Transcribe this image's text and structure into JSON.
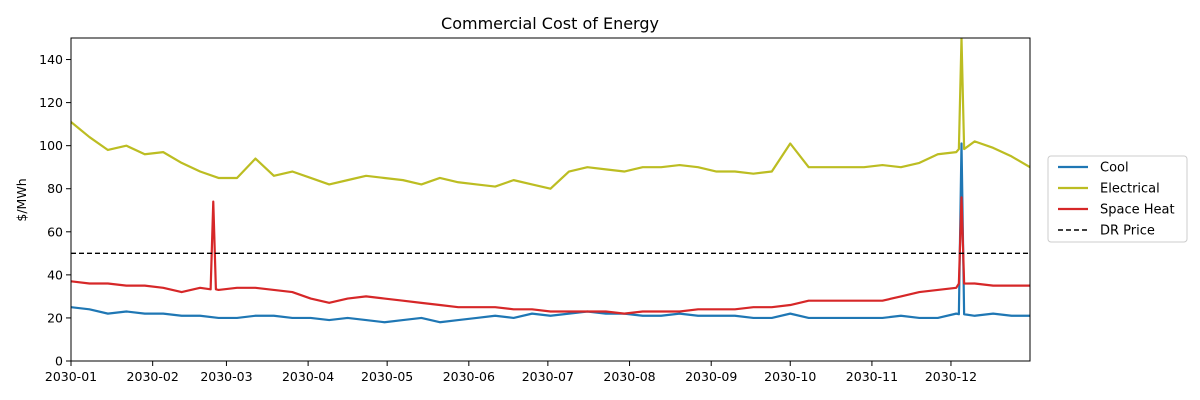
{
  "chart_data": {
    "type": "line",
    "title": "Commercial Cost of Energy",
    "xlabel": "",
    "ylabel": "$/MWh",
    "xlim": [
      "2030-01-01",
      "2030-12-31"
    ],
    "ylim": [
      0,
      150
    ],
    "x_ticks": [
      "2030-01",
      "2030-02",
      "2030-03",
      "2030-04",
      "2030-05",
      "2030-06",
      "2030-07",
      "2030-08",
      "2030-09",
      "2030-10",
      "2030-11",
      "2030-12"
    ],
    "y_ticks": [
      0,
      20,
      40,
      60,
      80,
      100,
      120,
      140
    ],
    "grid": false,
    "legend_position": "outside-right",
    "x": [
      "2030-01-01",
      "2030-01-08",
      "2030-01-15",
      "2030-01-22",
      "2030-01-29",
      "2030-02-05",
      "2030-02-12",
      "2030-02-19",
      "2030-02-26",
      "2030-03-05",
      "2030-03-12",
      "2030-03-19",
      "2030-03-26",
      "2030-04-02",
      "2030-04-09",
      "2030-04-16",
      "2030-04-23",
      "2030-04-30",
      "2030-05-07",
      "2030-05-14",
      "2030-05-21",
      "2030-05-28",
      "2030-06-04",
      "2030-06-11",
      "2030-06-18",
      "2030-06-25",
      "2030-07-02",
      "2030-07-09",
      "2030-07-16",
      "2030-07-23",
      "2030-07-30",
      "2030-08-06",
      "2030-08-13",
      "2030-08-20",
      "2030-08-27",
      "2030-09-03",
      "2030-09-10",
      "2030-09-17",
      "2030-09-24",
      "2030-10-01",
      "2030-10-08",
      "2030-10-15",
      "2030-10-22",
      "2030-10-29",
      "2030-11-05",
      "2030-11-12",
      "2030-11-19",
      "2030-11-26",
      "2030-12-03",
      "2030-12-10",
      "2030-12-17",
      "2030-12-24",
      "2030-12-31"
    ],
    "series": [
      {
        "name": "Cool",
        "color": "#1f77b4",
        "values": [
          25,
          24,
          22,
          23,
          22,
          22,
          21,
          21,
          20,
          20,
          21,
          21,
          20,
          20,
          19,
          20,
          19,
          18,
          19,
          20,
          18,
          19,
          20,
          21,
          20,
          22,
          21,
          22,
          23,
          22,
          22,
          21,
          21,
          22,
          21,
          21,
          21,
          20,
          20,
          22,
          20,
          20,
          20,
          20,
          20,
          21,
          20,
          20,
          22,
          21,
          22,
          21,
          21
        ]
      },
      {
        "name": "Electrical",
        "color": "#bcbd22",
        "values": [
          111,
          104,
          98,
          100,
          96,
          97,
          92,
          88,
          85,
          85,
          94,
          86,
          88,
          85,
          82,
          84,
          86,
          85,
          84,
          82,
          85,
          83,
          82,
          81,
          84,
          82,
          80,
          88,
          90,
          89,
          88,
          90,
          90,
          91,
          90,
          88,
          88,
          87,
          88,
          101,
          90,
          90,
          90,
          90,
          91,
          90,
          92,
          96,
          97,
          102,
          99,
          95,
          90
        ]
      },
      {
        "name": "Space Heat",
        "color": "#d62728",
        "values": [
          37,
          36,
          36,
          35,
          35,
          34,
          32,
          34,
          33,
          34,
          34,
          33,
          32,
          29,
          27,
          29,
          30,
          29,
          28,
          27,
          26,
          25,
          25,
          25,
          24,
          24,
          23,
          23,
          23,
          23,
          22,
          23,
          23,
          23,
          24,
          24,
          24,
          25,
          25,
          26,
          28,
          28,
          28,
          28,
          28,
          30,
          32,
          33,
          34,
          36,
          35,
          35,
          35
        ]
      }
    ],
    "spikes": [
      {
        "series": "Space Heat",
        "x": "2030-02-24",
        "value": 74
      },
      {
        "series": "Cool",
        "x": "2030-12-05",
        "value": 101
      },
      {
        "series": "Electrical",
        "x": "2030-12-05",
        "value": 150
      },
      {
        "series": "Space Heat",
        "x": "2030-12-05",
        "value": 76
      }
    ],
    "reference_lines": [
      {
        "name": "DR Price",
        "value": 50,
        "color": "#000000",
        "style": "dashed"
      }
    ]
  }
}
